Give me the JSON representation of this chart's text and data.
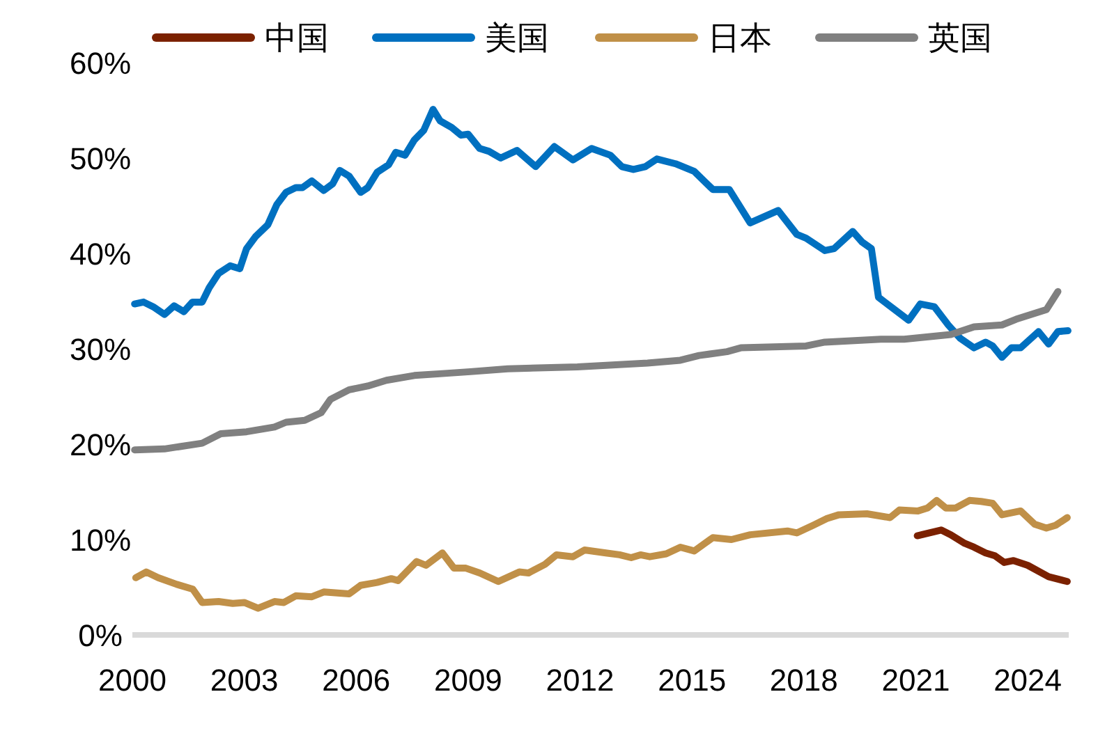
{
  "chart_data": {
    "type": "line",
    "legend": "top",
    "xlim": [
      2000,
      2025.1
    ],
    "ylim": [
      0,
      60
    ],
    "xticks": [
      2000,
      2003,
      2006,
      2009,
      2012,
      2015,
      2018,
      2021,
      2024
    ],
    "yticks": [
      {
        "value": 0,
        "label": "0%"
      },
      {
        "value": 10,
        "label": "10%"
      },
      {
        "value": 20,
        "label": "20%"
      },
      {
        "value": 30,
        "label": "30%"
      },
      {
        "value": 40,
        "label": "40%"
      },
      {
        "value": 50,
        "label": "50%"
      },
      {
        "value": 60,
        "label": "60%"
      }
    ],
    "series": [
      {
        "name": "中国",
        "color": "#7b2100",
        "x": [
          2021.04,
          2021.68,
          2021.94,
          2022.31,
          2022.56,
          2022.87,
          2023.12,
          2023.37,
          2023.62,
          2024.0,
          2024.56,
          2025.06
        ],
        "values": [
          10.4,
          11.0,
          10.5,
          9.6,
          9.2,
          8.6,
          8.3,
          7.6,
          7.8,
          7.3,
          6.1,
          5.6
        ]
      },
      {
        "name": "美国",
        "color": "#0070c0",
        "x": [
          2000.06,
          2000.3,
          2000.56,
          2000.86,
          2001.12,
          2001.38,
          2001.61,
          2001.87,
          2002.06,
          2002.31,
          2002.62,
          2002.88,
          2003.06,
          2003.31,
          2003.63,
          2003.87,
          2004.12,
          2004.38,
          2004.56,
          2004.81,
          2005.13,
          2005.37,
          2005.56,
          2005.81,
          2006.12,
          2006.31,
          2006.56,
          2006.87,
          2007.06,
          2007.31,
          2007.56,
          2007.81,
          2008.06,
          2008.25,
          2008.56,
          2008.81,
          2009.0,
          2009.31,
          2009.56,
          2009.87,
          2010.31,
          2010.81,
          2011.31,
          2011.81,
          2012.31,
          2012.81,
          2013.12,
          2013.43,
          2013.75,
          2014.06,
          2014.56,
          2015.06,
          2015.56,
          2016.0,
          2016.56,
          2017.31,
          2017.81,
          2018.06,
          2018.56,
          2018.81,
          2019.31,
          2019.56,
          2019.81,
          2020.0,
          2020.81,
          2021.12,
          2021.5,
          2021.87,
          2022.19,
          2022.56,
          2022.87,
          2023.06,
          2023.31,
          2023.56,
          2023.81,
          2024.29,
          2024.56,
          2024.81,
          2025.08
        ],
        "values": [
          34.7,
          34.9,
          34.4,
          33.6,
          34.5,
          33.9,
          34.9,
          34.9,
          36.4,
          37.9,
          38.7,
          38.4,
          40.5,
          41.8,
          43.0,
          45.1,
          46.4,
          46.9,
          46.9,
          47.6,
          46.6,
          47.3,
          48.7,
          48.1,
          46.4,
          46.9,
          48.5,
          49.3,
          50.6,
          50.3,
          51.9,
          52.9,
          55.1,
          53.9,
          53.2,
          52.4,
          52.5,
          51.0,
          50.7,
          50.0,
          50.8,
          49.1,
          51.2,
          49.8,
          51.0,
          50.3,
          49.1,
          48.8,
          49.1,
          49.9,
          49.4,
          48.6,
          46.7,
          46.7,
          43.2,
          44.5,
          42.0,
          41.6,
          40.3,
          40.5,
          42.3,
          41.2,
          40.5,
          35.4,
          33.0,
          34.7,
          34.4,
          32.5,
          31.1,
          30.1,
          30.7,
          30.3,
          29.1,
          30.1,
          30.1,
          31.8,
          30.5,
          31.8,
          31.9
        ]
      },
      {
        "name": "日本",
        "color": "#c09048",
        "x": [
          2000.09,
          2000.37,
          2000.69,
          2001.19,
          2001.62,
          2001.87,
          2002.31,
          2002.69,
          2003.0,
          2003.37,
          2003.81,
          2004.06,
          2004.38,
          2004.81,
          2005.13,
          2005.81,
          2006.12,
          2006.56,
          2006.94,
          2007.12,
          2007.62,
          2007.87,
          2008.31,
          2008.62,
          2008.94,
          2009.31,
          2009.81,
          2010.37,
          2010.62,
          2011.06,
          2011.37,
          2011.81,
          2012.12,
          2012.69,
          2013.06,
          2013.37,
          2013.62,
          2013.87,
          2014.31,
          2014.69,
          2015.06,
          2015.56,
          2016.06,
          2016.56,
          2017.56,
          2017.81,
          2018.25,
          2018.62,
          2018.94,
          2019.69,
          2020.31,
          2020.56,
          2021.06,
          2021.31,
          2021.56,
          2021.81,
          2022.06,
          2022.44,
          2022.75,
          2023.06,
          2023.31,
          2023.81,
          2024.19,
          2024.5,
          2024.75,
          2025.06
        ],
        "values": [
          6.0,
          6.6,
          6.0,
          5.3,
          4.8,
          3.4,
          3.5,
          3.3,
          3.4,
          2.8,
          3.5,
          3.4,
          4.1,
          4.0,
          4.5,
          4.3,
          5.2,
          5.5,
          5.9,
          5.7,
          7.7,
          7.3,
          8.6,
          7.0,
          7.0,
          6.5,
          5.6,
          6.6,
          6.5,
          7.4,
          8.4,
          8.2,
          8.9,
          8.6,
          8.4,
          8.1,
          8.4,
          8.2,
          8.5,
          9.2,
          8.8,
          10.2,
          10.0,
          10.5,
          10.9,
          10.7,
          11.5,
          12.2,
          12.6,
          12.7,
          12.3,
          13.1,
          13.0,
          13.3,
          14.1,
          13.3,
          13.3,
          14.1,
          14.0,
          13.8,
          12.6,
          13.0,
          11.6,
          11.2,
          11.5,
          12.3
        ]
      },
      {
        "name": "英国",
        "color": "#808080",
        "x": [
          2000.06,
          2000.86,
          2001.87,
          2002.37,
          2003.06,
          2003.81,
          2004.12,
          2004.62,
          2005.06,
          2005.31,
          2005.81,
          2006.31,
          2006.81,
          2007.56,
          2008.31,
          2009.06,
          2010.06,
          2011.93,
          2013.81,
          2014.69,
          2015.19,
          2015.94,
          2016.31,
          2018.06,
          2018.56,
          2020.06,
          2020.69,
          2021.94,
          2022.56,
          2023.31,
          2023.69,
          2024.5,
          2024.81
        ],
        "values": [
          19.4,
          19.5,
          20.1,
          21.1,
          21.3,
          21.8,
          22.3,
          22.5,
          23.3,
          24.7,
          25.7,
          26.1,
          26.7,
          27.2,
          27.4,
          27.6,
          27.9,
          28.1,
          28.5,
          28.8,
          29.3,
          29.7,
          30.1,
          30.3,
          30.7,
          31.0,
          31.0,
          31.5,
          32.3,
          32.5,
          33.1,
          34.1,
          36.0
        ]
      }
    ]
  }
}
